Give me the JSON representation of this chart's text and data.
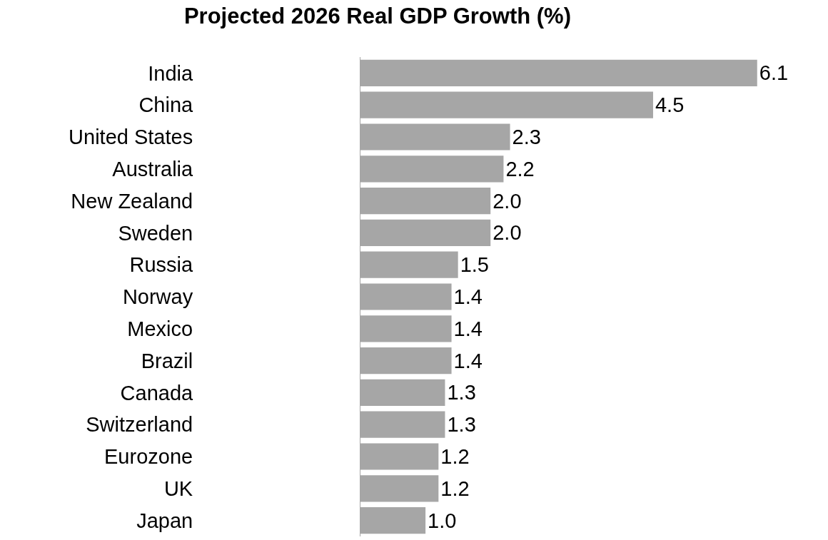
{
  "chart_data": {
    "type": "bar",
    "orientation": "horizontal",
    "title": "Projected 2026 Real GDP Growth (%)",
    "categories": [
      "India",
      "China",
      "United States",
      "Australia",
      "New Zealand",
      "Sweden",
      "Russia",
      "Norway",
      "Mexico",
      "Brazil",
      "Canada",
      "Switzerland",
      "Eurozone",
      "UK",
      "Japan"
    ],
    "values": [
      6.1,
      4.5,
      2.3,
      2.2,
      2.0,
      2.0,
      1.5,
      1.4,
      1.4,
      1.4,
      1.3,
      1.3,
      1.2,
      1.2,
      1.0
    ],
    "value_labels": [
      "6.1",
      "4.5",
      "2.3",
      "2.2",
      "2.0",
      "2.0",
      "1.5",
      "1.4",
      "1.4",
      "1.4",
      "1.3",
      "1.3",
      "1.2",
      "1.2",
      "1.0"
    ],
    "color": "#a6a6a6"
  }
}
